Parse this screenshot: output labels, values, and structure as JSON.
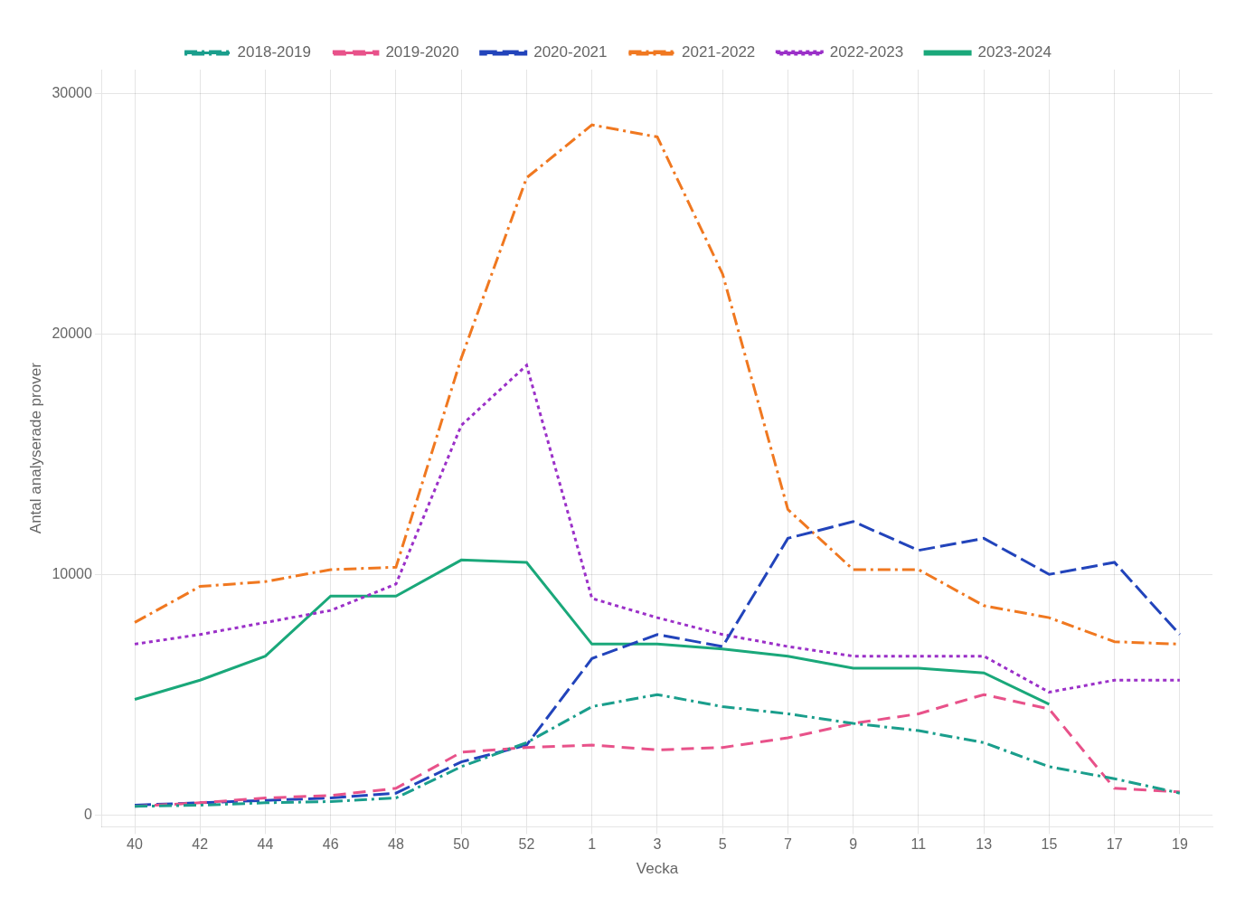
{
  "chart_data": {
    "type": "line",
    "categories": [
      "40",
      "42",
      "44",
      "46",
      "48",
      "50",
      "52",
      "1",
      "3",
      "5",
      "7",
      "9",
      "11",
      "13",
      "15",
      "17",
      "19"
    ],
    "series": [
      {
        "name": "2018-2019",
        "color": "#1a9e8c",
        "line_style": "dashdot",
        "values": [
          350,
          400,
          500,
          550,
          700,
          2000,
          3000,
          4500,
          5000,
          4500,
          4200,
          3800,
          3500,
          3000,
          2000,
          1500,
          900
        ]
      },
      {
        "name": "2019-2020",
        "color": "#e8528a",
        "line_style": "dashed",
        "values": [
          350,
          500,
          700,
          800,
          1100,
          2600,
          2800,
          2900,
          2700,
          2800,
          3200,
          3800,
          4200,
          5000,
          4400,
          1100,
          950
        ]
      },
      {
        "name": "2020-2021",
        "color": "#2244bb",
        "line_style": "longdash",
        "values": [
          400,
          500,
          600,
          700,
          900,
          2200,
          2900,
          6500,
          7500,
          7000,
          11500,
          12200,
          11000,
          11500,
          10000,
          10500,
          7500
        ]
      },
      {
        "name": "2021-2022",
        "color": "#f07820",
        "line_style": "dashdot",
        "values": [
          8000,
          9500,
          9700,
          10200,
          10300,
          19000,
          26500,
          28700,
          28200,
          22500,
          12700,
          10200,
          10200,
          8700,
          8200,
          7200,
          7100
        ]
      },
      {
        "name": "2022-2023",
        "color": "#9b30c8",
        "line_style": "dotted",
        "values": [
          7100,
          7500,
          8000,
          8500,
          9600,
          16200,
          18700,
          9000,
          8200,
          7500,
          7000,
          6600,
          6600,
          6600,
          5100,
          5600,
          5600
        ]
      },
      {
        "name": "2023-2024",
        "color": "#1aa87a",
        "line_style": "solid",
        "values": [
          4800,
          5600,
          6600,
          9100,
          9100,
          10600,
          10500,
          7100,
          7100,
          6900,
          6600,
          6100,
          6100,
          5900,
          4600,
          null,
          null
        ]
      }
    ],
    "xlabel": "Vecka",
    "ylabel": "Antal analyserade prover",
    "ylim": [
      -500,
      31000
    ],
    "yticks": [
      0,
      10000,
      20000,
      30000
    ],
    "grid": true,
    "legend": "top"
  }
}
